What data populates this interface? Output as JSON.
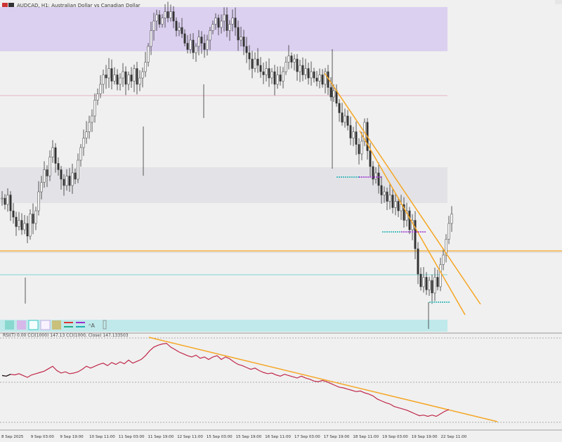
{
  "header": {
    "title": "AUDCAD, H1: Australian Dollar vs Canadian Dollar"
  },
  "indicator": {
    "label": "RSI(T) 0.00 CCI(1000) 147.13 CCI(1000, Close) 147.133503"
  },
  "x_axis": {
    "tick_labels": [
      "8 Sep 2025",
      "9 Sep 03:00",
      "9 Sep 19:00",
      "10 Sep 11:00",
      "11 Sep 03:00",
      "11 Sep 19:00",
      "12 Sep 11:00",
      "15 Sep 03:00",
      "15 Sep 19:00",
      "16 Sep 11:00",
      "17 Sep 03:00",
      "17 Sep 19:00",
      "18 Sep 11:00",
      "19 Sep 03:00",
      "19 Sep 19:00",
      "22 Sep 11:00"
    ]
  },
  "colors": {
    "background": "#f0f0f0",
    "candle": "#333333",
    "supply_zone": "#dcd0f0",
    "grey_zone": "#e3e3e7",
    "cyan_zone": "#bfe9ea",
    "trendline": "#f5a623",
    "cci_line": "#c0284a",
    "pink_line": "#e8b4c4",
    "cyan_line": "#7fd6d6",
    "dot_purple": "#9b30d0",
    "dot_cyan": "#20b0b0"
  },
  "toolbar_icons": [
    "teal-swatch-icon",
    "lavender-swatch-icon",
    "cyan-outline-swatch-icon",
    "lavender-outline-swatch-icon",
    "olive-swatch-icon",
    "red-green-lines-icon",
    "purple-cyan-lines-icon",
    "text-size-icon",
    "tool-handle-icon"
  ],
  "chart_data": {
    "type": "candlestick",
    "symbol": "AUDCAD",
    "timeframe": "H1",
    "main_close_path": [
      [
        0,
        0.4
      ],
      [
        4,
        0.38
      ],
      [
        8,
        0.41
      ],
      [
        12,
        0.36
      ],
      [
        16,
        0.34
      ],
      [
        20,
        0.31
      ],
      [
        24,
        0.33
      ],
      [
        28,
        0.3
      ],
      [
        32,
        0.32
      ],
      [
        36,
        0.28
      ],
      [
        40,
        0.35
      ],
      [
        44,
        0.32
      ],
      [
        48,
        0.36
      ],
      [
        52,
        0.42
      ],
      [
        56,
        0.45
      ],
      [
        60,
        0.49
      ],
      [
        64,
        0.47
      ],
      [
        68,
        0.53
      ],
      [
        72,
        0.56
      ],
      [
        76,
        0.51
      ],
      [
        80,
        0.49
      ],
      [
        84,
        0.46
      ],
      [
        88,
        0.44
      ],
      [
        92,
        0.47
      ],
      [
        96,
        0.44
      ],
      [
        100,
        0.48
      ],
      [
        104,
        0.46
      ],
      [
        108,
        0.52
      ],
      [
        112,
        0.56
      ],
      [
        116,
        0.59
      ],
      [
        120,
        0.61
      ],
      [
        124,
        0.64
      ],
      [
        128,
        0.66
      ],
      [
        132,
        0.71
      ],
      [
        136,
        0.73
      ],
      [
        140,
        0.76
      ],
      [
        144,
        0.79
      ],
      [
        148,
        0.78
      ],
      [
        152,
        0.81
      ],
      [
        156,
        0.77
      ],
      [
        160,
        0.79
      ],
      [
        164,
        0.76
      ],
      [
        168,
        0.78
      ],
      [
        172,
        0.8
      ],
      [
        176,
        0.76
      ],
      [
        180,
        0.79
      ],
      [
        184,
        0.77
      ],
      [
        188,
        0.81
      ],
      [
        192,
        0.76
      ],
      [
        196,
        0.78
      ],
      [
        200,
        0.8
      ],
      [
        204,
        0.83
      ],
      [
        208,
        0.88
      ],
      [
        212,
        0.93
      ],
      [
        216,
        0.96
      ],
      [
        220,
        0.98
      ],
      [
        224,
        0.95
      ],
      [
        228,
        0.97
      ],
      [
        232,
        0.99
      ],
      [
        236,
        0.97
      ],
      [
        240,
        0.99
      ],
      [
        244,
        0.96
      ],
      [
        248,
        0.93
      ],
      [
        252,
        0.94
      ],
      [
        256,
        0.92
      ],
      [
        260,
        0.89
      ],
      [
        264,
        0.87
      ],
      [
        268,
        0.9
      ],
      [
        272,
        0.86
      ],
      [
        276,
        0.88
      ],
      [
        280,
        0.91
      ],
      [
        284,
        0.89
      ],
      [
        288,
        0.87
      ],
      [
        292,
        0.9
      ],
      [
        296,
        0.93
      ],
      [
        300,
        0.95
      ],
      [
        304,
        0.97
      ],
      [
        308,
        0.94
      ],
      [
        312,
        0.96
      ],
      [
        316,
        0.98
      ],
      [
        320,
        0.93
      ],
      [
        324,
        0.95
      ],
      [
        328,
        0.97
      ],
      [
        332,
        0.94
      ],
      [
        336,
        0.9
      ],
      [
        340,
        0.91
      ],
      [
        344,
        0.88
      ],
      [
        348,
        0.86
      ],
      [
        352,
        0.84
      ],
      [
        356,
        0.81
      ],
      [
        360,
        0.84
      ],
      [
        364,
        0.82
      ],
      [
        368,
        0.8
      ],
      [
        372,
        0.79
      ],
      [
        376,
        0.81
      ],
      [
        380,
        0.78
      ],
      [
        384,
        0.8
      ],
      [
        388,
        0.76
      ],
      [
        392,
        0.79
      ],
      [
        396,
        0.77
      ],
      [
        400,
        0.8
      ],
      [
        404,
        0.83
      ],
      [
        408,
        0.85
      ],
      [
        412,
        0.83
      ],
      [
        416,
        0.84
      ],
      [
        420,
        0.8
      ],
      [
        424,
        0.82
      ],
      [
        428,
        0.79
      ],
      [
        432,
        0.81
      ],
      [
        436,
        0.78
      ],
      [
        440,
        0.8
      ],
      [
        444,
        0.78
      ],
      [
        448,
        0.77
      ],
      [
        452,
        0.79
      ],
      [
        456,
        0.76
      ],
      [
        460,
        0.8
      ],
      [
        464,
        0.75
      ],
      [
        468,
        0.72
      ],
      [
        472,
        0.74
      ],
      [
        476,
        0.7
      ],
      [
        480,
        0.67
      ],
      [
        484,
        0.64
      ],
      [
        488,
        0.66
      ],
      [
        492,
        0.63
      ],
      [
        496,
        0.59
      ],
      [
        500,
        0.61
      ],
      [
        504,
        0.57
      ],
      [
        508,
        0.54
      ],
      [
        512,
        0.58
      ],
      [
        516,
        0.64
      ],
      [
        520,
        0.55
      ],
      [
        524,
        0.5
      ],
      [
        528,
        0.46
      ],
      [
        532,
        0.48
      ],
      [
        536,
        0.44
      ],
      [
        540,
        0.41
      ],
      [
        544,
        0.42
      ],
      [
        548,
        0.39
      ],
      [
        552,
        0.41
      ],
      [
        556,
        0.37
      ],
      [
        560,
        0.39
      ],
      [
        564,
        0.36
      ],
      [
        568,
        0.38
      ],
      [
        572,
        0.33
      ],
      [
        576,
        0.36
      ],
      [
        580,
        0.3
      ],
      [
        584,
        0.33
      ],
      [
        588,
        0.24
      ],
      [
        592,
        0.16
      ],
      [
        596,
        0.12
      ],
      [
        600,
        0.15
      ],
      [
        604,
        0.11
      ],
      [
        608,
        0.14
      ],
      [
        612,
        0.1
      ],
      [
        616,
        0.15
      ],
      [
        620,
        0.12
      ],
      [
        624,
        0.19
      ],
      [
        628,
        0.22
      ],
      [
        632,
        0.27
      ],
      [
        636,
        0.32
      ],
      [
        640,
        0.35
      ]
    ],
    "cci_path": [
      [
        0,
        0.4
      ],
      [
        6,
        0.39
      ],
      [
        12,
        0.42
      ],
      [
        18,
        0.41
      ],
      [
        24,
        0.43
      ],
      [
        30,
        0.4
      ],
      [
        36,
        0.37
      ],
      [
        42,
        0.41
      ],
      [
        48,
        0.43
      ],
      [
        54,
        0.45
      ],
      [
        60,
        0.47
      ],
      [
        66,
        0.51
      ],
      [
        72,
        0.55
      ],
      [
        78,
        0.48
      ],
      [
        84,
        0.44
      ],
      [
        90,
        0.46
      ],
      [
        96,
        0.43
      ],
      [
        102,
        0.44
      ],
      [
        108,
        0.46
      ],
      [
        114,
        0.5
      ],
      [
        120,
        0.55
      ],
      [
        126,
        0.52
      ],
      [
        132,
        0.55
      ],
      [
        138,
        0.58
      ],
      [
        144,
        0.6
      ],
      [
        150,
        0.56
      ],
      [
        156,
        0.61
      ],
      [
        162,
        0.58
      ],
      [
        168,
        0.62
      ],
      [
        174,
        0.59
      ],
      [
        180,
        0.65
      ],
      [
        186,
        0.6
      ],
      [
        192,
        0.63
      ],
      [
        198,
        0.66
      ],
      [
        204,
        0.72
      ],
      [
        210,
        0.8
      ],
      [
        216,
        0.86
      ],
      [
        222,
        0.89
      ],
      [
        228,
        0.91
      ],
      [
        234,
        0.92
      ],
      [
        240,
        0.86
      ],
      [
        246,
        0.82
      ],
      [
        252,
        0.78
      ],
      [
        258,
        0.75
      ],
      [
        264,
        0.72
      ],
      [
        270,
        0.7
      ],
      [
        276,
        0.73
      ],
      [
        282,
        0.68
      ],
      [
        288,
        0.7
      ],
      [
        294,
        0.66
      ],
      [
        300,
        0.7
      ],
      [
        306,
        0.72
      ],
      [
        312,
        0.66
      ],
      [
        318,
        0.7
      ],
      [
        324,
        0.67
      ],
      [
        330,
        0.62
      ],
      [
        336,
        0.58
      ],
      [
        342,
        0.56
      ],
      [
        348,
        0.53
      ],
      [
        354,
        0.5
      ],
      [
        360,
        0.52
      ],
      [
        366,
        0.48
      ],
      [
        372,
        0.45
      ],
      [
        378,
        0.43
      ],
      [
        384,
        0.44
      ],
      [
        390,
        0.41
      ],
      [
        396,
        0.39
      ],
      [
        402,
        0.42
      ],
      [
        408,
        0.4
      ],
      [
        414,
        0.38
      ],
      [
        420,
        0.36
      ],
      [
        426,
        0.39
      ],
      [
        432,
        0.36
      ],
      [
        438,
        0.34
      ],
      [
        444,
        0.31
      ],
      [
        450,
        0.3
      ],
      [
        456,
        0.32
      ],
      [
        462,
        0.3
      ],
      [
        468,
        0.27
      ],
      [
        474,
        0.24
      ],
      [
        480,
        0.21
      ],
      [
        486,
        0.2
      ],
      [
        492,
        0.18
      ],
      [
        498,
        0.16
      ],
      [
        504,
        0.14
      ],
      [
        510,
        0.15
      ],
      [
        516,
        0.12
      ],
      [
        522,
        0.1
      ],
      [
        528,
        0.07
      ],
      [
        534,
        0.02
      ],
      [
        540,
        -0.01
      ],
      [
        546,
        -0.04
      ],
      [
        552,
        -0.06
      ],
      [
        558,
        -0.1
      ],
      [
        564,
        -0.12
      ],
      [
        570,
        -0.14
      ],
      [
        576,
        -0.16
      ],
      [
        582,
        -0.19
      ],
      [
        588,
        -0.22
      ],
      [
        594,
        -0.25
      ],
      [
        600,
        -0.24
      ],
      [
        606,
        -0.26
      ],
      [
        612,
        -0.24
      ],
      [
        618,
        -0.26
      ],
      [
        624,
        -0.22
      ],
      [
        630,
        -0.18
      ],
      [
        636,
        -0.15
      ]
    ],
    "legend": [],
    "xlabel": "",
    "ylabel": ""
  }
}
